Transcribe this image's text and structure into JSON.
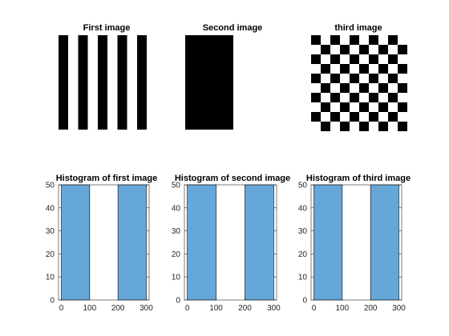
{
  "figure": {
    "images": [
      {
        "title": "First image",
        "pattern": "vertical-stripes",
        "stripes": 5
      },
      {
        "title": "Second image",
        "pattern": "solid-block"
      },
      {
        "title": "third image",
        "pattern": "checkerboard",
        "cells": 10
      }
    ]
  },
  "chart_data": [
    {
      "type": "bar",
      "title": "Histogram of first image",
      "bins": [
        {
          "x0": 0,
          "x1": 100,
          "count": 50
        },
        {
          "x0": 100,
          "x1": 200,
          "count": 0
        },
        {
          "x0": 200,
          "x1": 300,
          "count": 50
        }
      ],
      "xlim": [
        -10,
        310
      ],
      "ylim": [
        0,
        50
      ],
      "xticks": [
        0,
        100,
        200,
        300
      ],
      "yticks": [
        0,
        10,
        20,
        30,
        40,
        50
      ],
      "bar_color": "#66a7d9",
      "xlabel": "",
      "ylabel": ""
    },
    {
      "type": "bar",
      "title": "Histogram of second image",
      "bins": [
        {
          "x0": 0,
          "x1": 100,
          "count": 50
        },
        {
          "x0": 100,
          "x1": 200,
          "count": 0
        },
        {
          "x0": 200,
          "x1": 300,
          "count": 50
        }
      ],
      "xlim": [
        -10,
        310
      ],
      "ylim": [
        0,
        50
      ],
      "xticks": [
        0,
        100,
        200,
        300
      ],
      "yticks": [
        0,
        10,
        20,
        30,
        40,
        50
      ],
      "bar_color": "#66a7d9",
      "xlabel": "",
      "ylabel": ""
    },
    {
      "type": "bar",
      "title": "Histogram of third image",
      "bins": [
        {
          "x0": 0,
          "x1": 100,
          "count": 50
        },
        {
          "x0": 100,
          "x1": 200,
          "count": 0
        },
        {
          "x0": 200,
          "x1": 300,
          "count": 50
        }
      ],
      "xlim": [
        -10,
        310
      ],
      "ylim": [
        0,
        50
      ],
      "xticks": [
        0,
        100,
        200,
        300
      ],
      "yticks": [
        0,
        10,
        20,
        30,
        40,
        50
      ],
      "bar_color": "#66a7d9",
      "xlabel": "",
      "ylabel": ""
    }
  ]
}
